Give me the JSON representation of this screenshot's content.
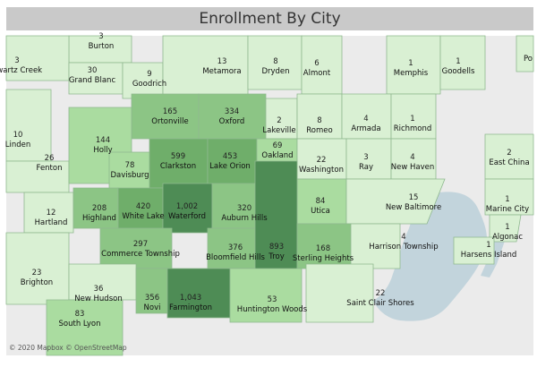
{
  "title": "Enrollment By City",
  "attribution": "© 2020 Mapbox © OpenStreetMap",
  "palette": {
    "water": "#c2d4dc",
    "land": "#ebebeb",
    "low": "#d9f0d3",
    "mid": "#aadca0",
    "high": "#8cc585",
    "higher": "#6fae6a",
    "highest": "#4e8c55"
  },
  "regions": [
    {
      "count": "3",
      "city": "Burton"
    },
    {
      "count": "3",
      "city": "Swartz Creek"
    },
    {
      "count": "30",
      "city": "Grand Blanc"
    },
    {
      "count": "9",
      "city": "Goodrich"
    },
    {
      "count": "13",
      "city": "Metamora"
    },
    {
      "count": "8",
      "city": "Dryden"
    },
    {
      "count": "6",
      "city": "Almont"
    },
    {
      "count": "1",
      "city": "Memphis"
    },
    {
      "count": "1",
      "city": "Goodells"
    },
    {
      "count": "",
      "city": "Po"
    },
    {
      "count": "165",
      "city": "Ortonville"
    },
    {
      "count": "334",
      "city": "Oxford"
    },
    {
      "count": "2",
      "city": "Lakeville"
    },
    {
      "count": "8",
      "city": "Romeo"
    },
    {
      "count": "4",
      "city": "Armada"
    },
    {
      "count": "1",
      "city": "Richmond"
    },
    {
      "count": "10",
      "city": "Linden"
    },
    {
      "count": "26",
      "city": "Fenton"
    },
    {
      "count": "144",
      "city": "Holly"
    },
    {
      "count": "78",
      "city": "Davisburg"
    },
    {
      "count": "599",
      "city": "Clarkston"
    },
    {
      "count": "453",
      "city": "Lake Orion"
    },
    {
      "count": "69",
      "city": "Oakland"
    },
    {
      "count": "22",
      "city": "Washington"
    },
    {
      "count": "3",
      "city": "Ray"
    },
    {
      "count": "4",
      "city": "New Haven"
    },
    {
      "count": "2",
      "city": "East China"
    },
    {
      "count": "12",
      "city": "Hartland"
    },
    {
      "count": "208",
      "city": "Highland"
    },
    {
      "count": "420",
      "city": "White Lake"
    },
    {
      "count": "1,002",
      "city": "Waterford"
    },
    {
      "count": "320",
      "city": "Auburn Hills"
    },
    {
      "count": "84",
      "city": "Utica"
    },
    {
      "count": "15",
      "city": "New Baltimore"
    },
    {
      "count": "1",
      "city": "Marine City"
    },
    {
      "count": "1",
      "city": "Algonac"
    },
    {
      "count": "297",
      "city": "Commerce Township"
    },
    {
      "count": "376",
      "city": "Bloomfield Hills"
    },
    {
      "count": "893",
      "city": "Troy"
    },
    {
      "count": "168",
      "city": "Sterling Heights"
    },
    {
      "count": "4",
      "city": "Harrison Township"
    },
    {
      "count": "1",
      "city": "Harsens Island"
    },
    {
      "count": "23",
      "city": "Brighton"
    },
    {
      "count": "36",
      "city": "New Hudson"
    },
    {
      "count": "356",
      "city": "Novi"
    },
    {
      "count": "1,043",
      "city": "Farmington"
    },
    {
      "count": "53",
      "city": "Huntington Woods"
    },
    {
      "count": "22",
      "city": "Saint Clair Shores"
    },
    {
      "count": "83",
      "city": "South Lyon"
    }
  ]
}
